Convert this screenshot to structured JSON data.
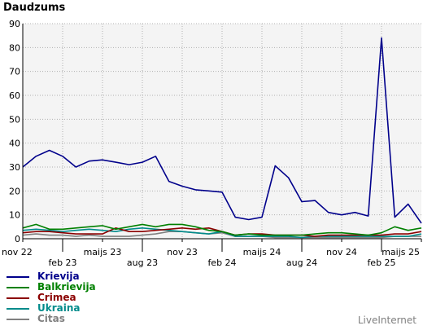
{
  "title": "Daudzums",
  "credit": "LiveInternet",
  "chart_data": {
    "type": "line",
    "title": "Daudzums",
    "ylim": [
      0,
      90
    ],
    "yticks": [
      0,
      10,
      20,
      30,
      40,
      50,
      60,
      70,
      80,
      90
    ],
    "grid": true,
    "x_index_range": [
      0,
      30
    ],
    "xticks": [
      {
        "label": "nov 22",
        "index": 0
      },
      {
        "label": "feb 23",
        "index": 3
      },
      {
        "label": "maijs 23",
        "index": 6
      },
      {
        "label": "aug 23",
        "index": 9
      },
      {
        "label": "nov 23",
        "index": 12
      },
      {
        "label": "feb 24",
        "index": 15
      },
      {
        "label": "maijs 24",
        "index": 18
      },
      {
        "label": "aug 24",
        "index": 21
      },
      {
        "label": "nov 24",
        "index": 24
      },
      {
        "label": "feb 25",
        "index": 27
      },
      {
        "label": "maijs 25",
        "index": 30
      }
    ],
    "legend_position": "bottom-left",
    "series": [
      {
        "name": "Krievija",
        "color": "#00008b",
        "values": [
          30,
          34.5,
          37,
          34.5,
          30,
          32.5,
          33,
          32,
          31,
          32,
          34.5,
          24,
          22,
          20.5,
          20,
          19.5,
          9,
          8,
          9,
          30.5,
          25.5,
          15.5,
          16,
          11,
          10,
          11,
          9.5,
          84,
          9,
          14.5,
          6.5
        ]
      },
      {
        "name": "Balkrievija",
        "color": "#008000",
        "values": [
          4.5,
          6,
          4,
          4,
          4.5,
          5,
          5.5,
          4,
          5,
          6,
          5,
          6,
          6,
          5,
          3.5,
          3,
          1.5,
          2,
          1.5,
          1.5,
          1.5,
          1.5,
          2,
          2.5,
          2.5,
          2,
          1.5,
          2.5,
          5,
          3.5,
          4.5
        ]
      },
      {
        "name": "Crimea",
        "color": "#8b0000",
        "values": [
          2.5,
          3,
          3,
          2.5,
          2,
          2,
          2,
          4.5,
          3,
          3,
          3.5,
          4,
          4.5,
          4,
          4.5,
          3,
          1.5,
          2,
          2,
          1.5,
          1.5,
          1.5,
          1,
          1.5,
          1.5,
          1.5,
          1.5,
          1.5,
          2,
          2,
          3
        ]
      },
      {
        "name": "Ukraina",
        "color": "#008b8b",
        "values": [
          3.5,
          4,
          3.5,
          3,
          3.5,
          4,
          3.5,
          3,
          4,
          4.5,
          4,
          3.5,
          3,
          2.5,
          2,
          3,
          1,
          1,
          1,
          1,
          1,
          0.5,
          1,
          1,
          1,
          1,
          1,
          1,
          1,
          1,
          2
        ]
      },
      {
        "name": "Citas",
        "color": "#808080",
        "values": [
          1.5,
          2,
          1.5,
          1.5,
          1,
          1.5,
          1,
          1,
          1,
          1.5,
          2,
          3,
          3,
          2.5,
          2,
          2.5,
          1,
          1,
          1,
          0.5,
          0.5,
          0.5,
          0.5,
          0.5,
          0.5,
          0.5,
          0.5,
          0.5,
          1,
          1,
          1
        ]
      }
    ]
  }
}
